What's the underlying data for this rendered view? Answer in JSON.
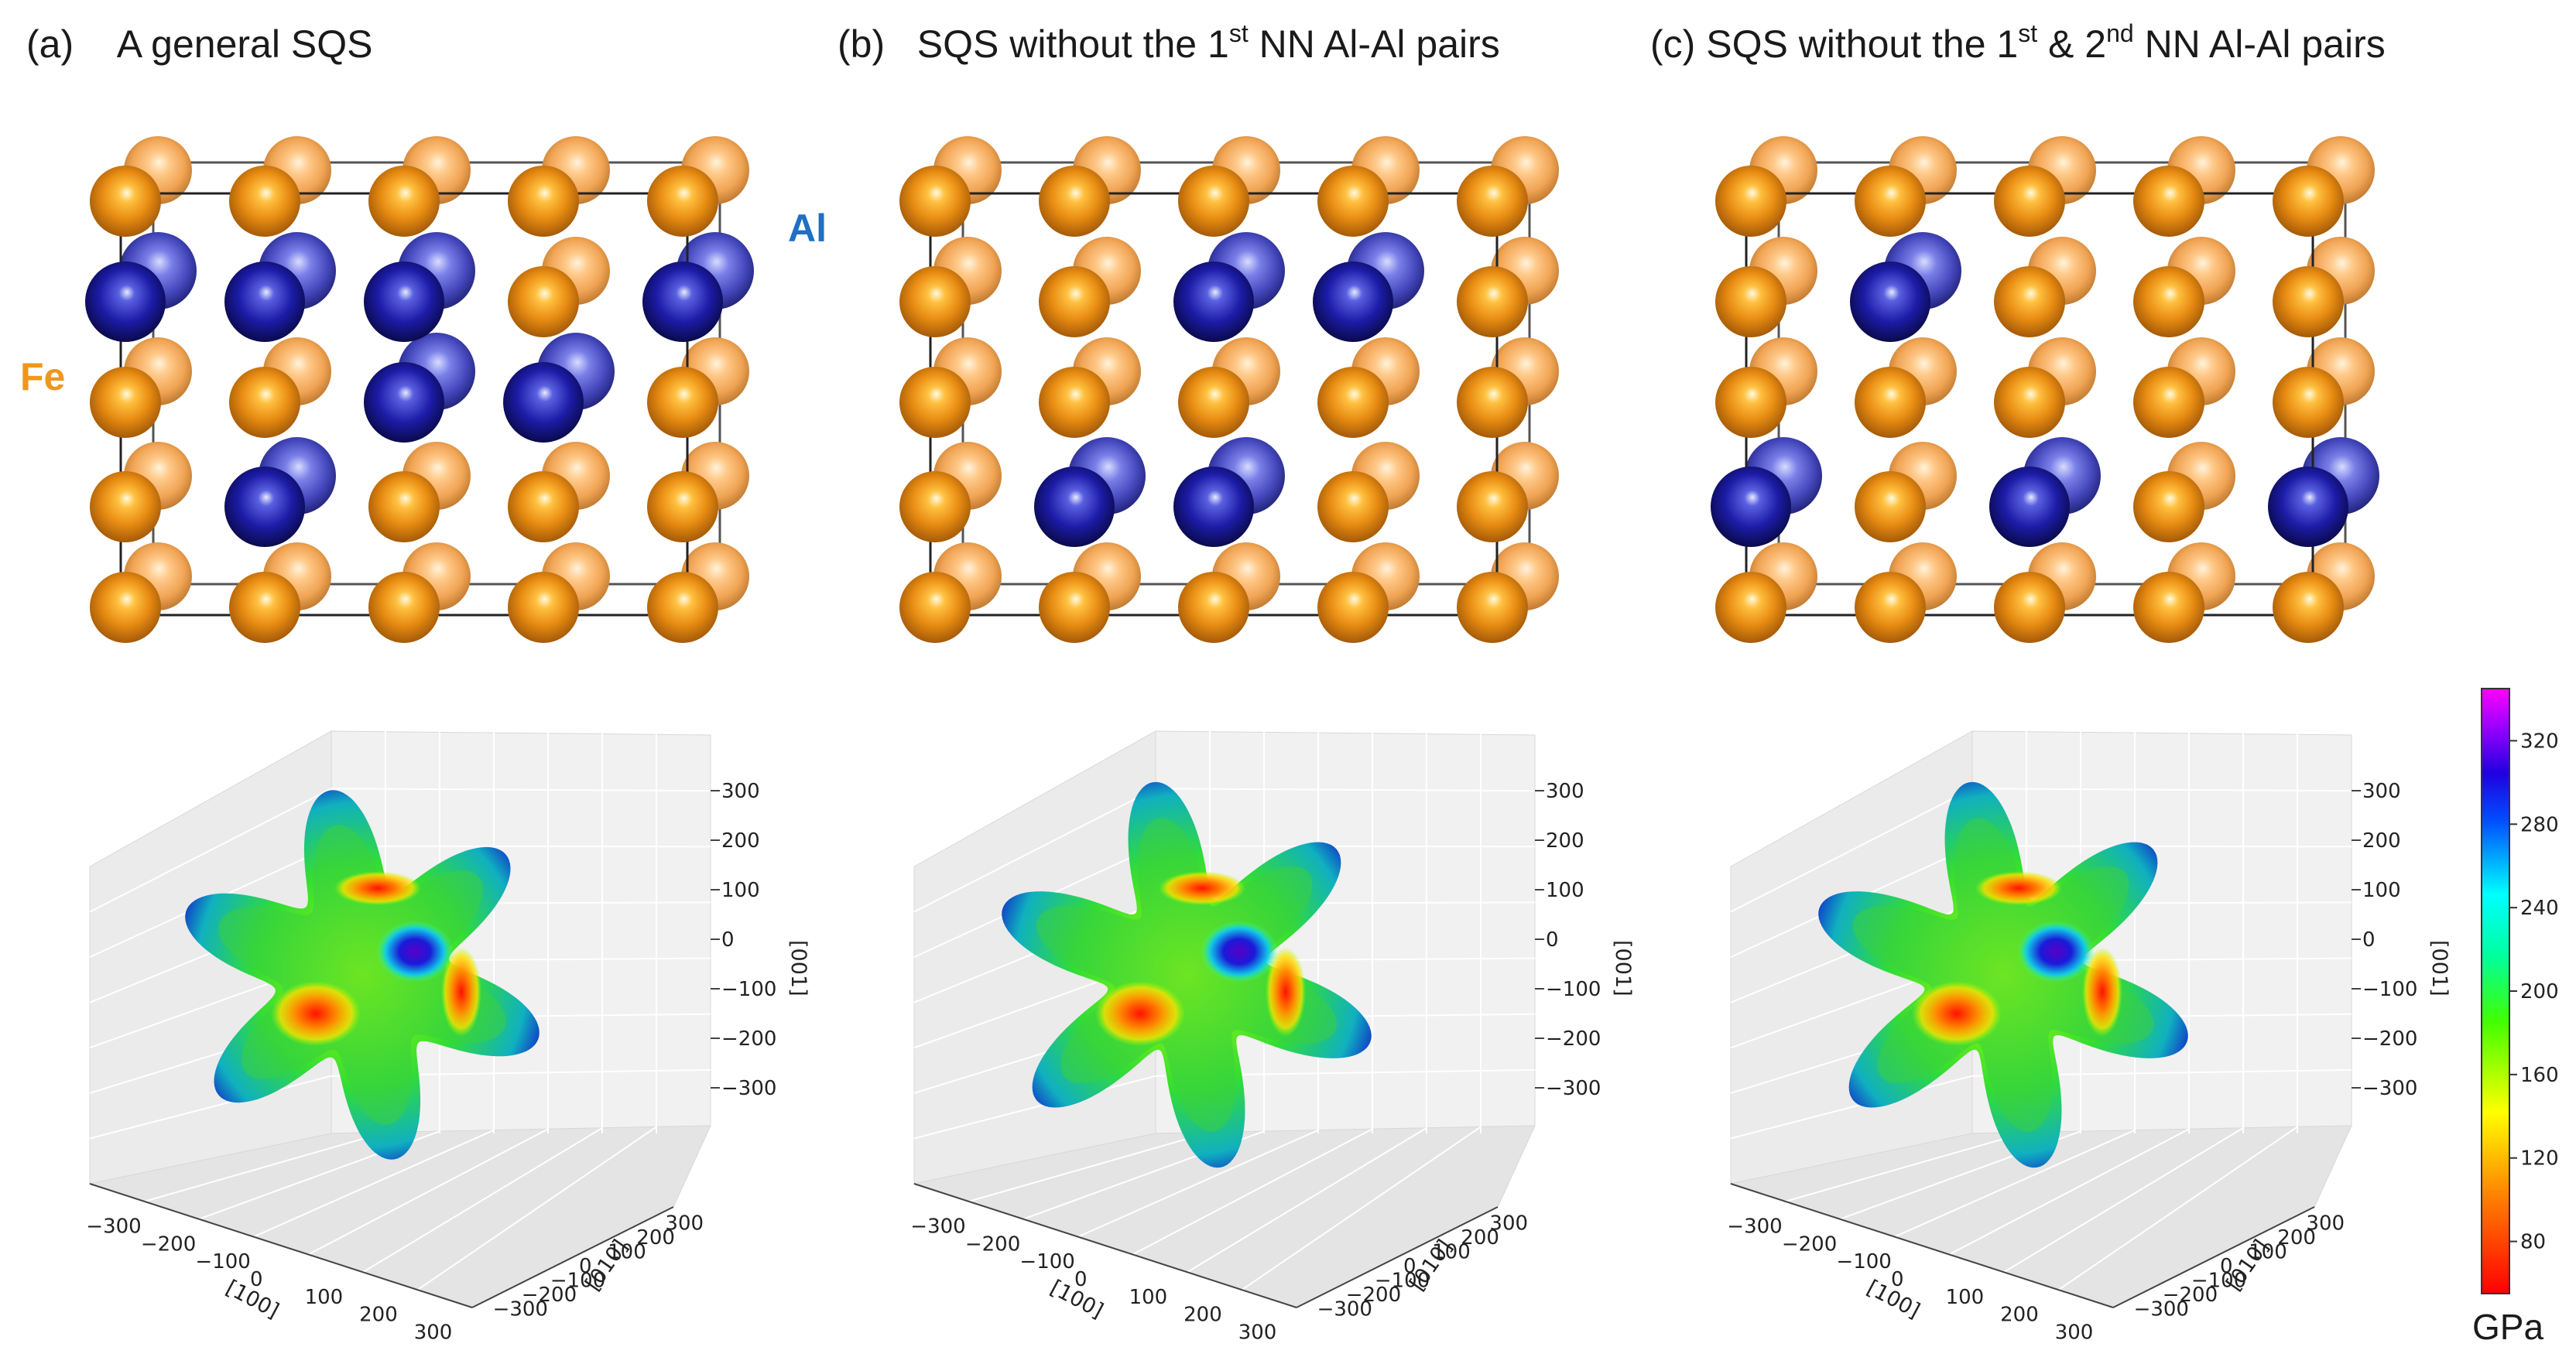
{
  "panels": [
    {
      "tag": "(a)",
      "title": "A general SQS",
      "al_sites": [
        [
          0,
          1
        ],
        [
          1,
          1
        ],
        [
          2,
          1
        ],
        [
          4,
          1
        ],
        [
          2,
          2
        ],
        [
          3,
          2
        ],
        [
          1,
          3
        ]
      ]
    },
    {
      "tag": "(b)",
      "title_pre": "SQS without the 1",
      "title_sup": "st",
      "title_post": " NN Al-Al pairs",
      "al_sites": [
        [
          2,
          1
        ],
        [
          3,
          1
        ],
        [
          1,
          3
        ],
        [
          2,
          3
        ]
      ]
    },
    {
      "tag": "(c)",
      "title_pre": "SQS without the 1",
      "title_sup1": "st",
      "title_mid": " & 2",
      "title_sup2": "nd",
      "title_post": " NN Al-Al pairs",
      "al_sites": [
        [
          1,
          1
        ],
        [
          0,
          3
        ],
        [
          2,
          3
        ],
        [
          4,
          3
        ]
      ]
    }
  ],
  "labels": {
    "fe": "Fe",
    "al": "Al"
  },
  "colors": {
    "fe": "#e88c12",
    "al": "#1c1ca8",
    "fe_label": "#f0961e",
    "al_label": "#1f6fc2"
  },
  "axes": {
    "z_label": "[001]",
    "y_label": "[010]",
    "x_label": "[100]",
    "z_ticks": [
      "300",
      "200",
      "100",
      "0",
      "−100",
      "−200",
      "−300"
    ],
    "y_ticks": [
      "300",
      "200",
      "100",
      "0",
      "−100",
      "−200",
      "−300"
    ],
    "x_ticks": [
      "−300",
      "−200",
      "−100",
      "0",
      "100",
      "200",
      "300"
    ]
  },
  "colorbar": {
    "ticks": [
      "320",
      "280",
      "240",
      "200",
      "160",
      "120",
      "80"
    ],
    "unit": "GPa",
    "min": 55,
    "max": 345
  }
}
